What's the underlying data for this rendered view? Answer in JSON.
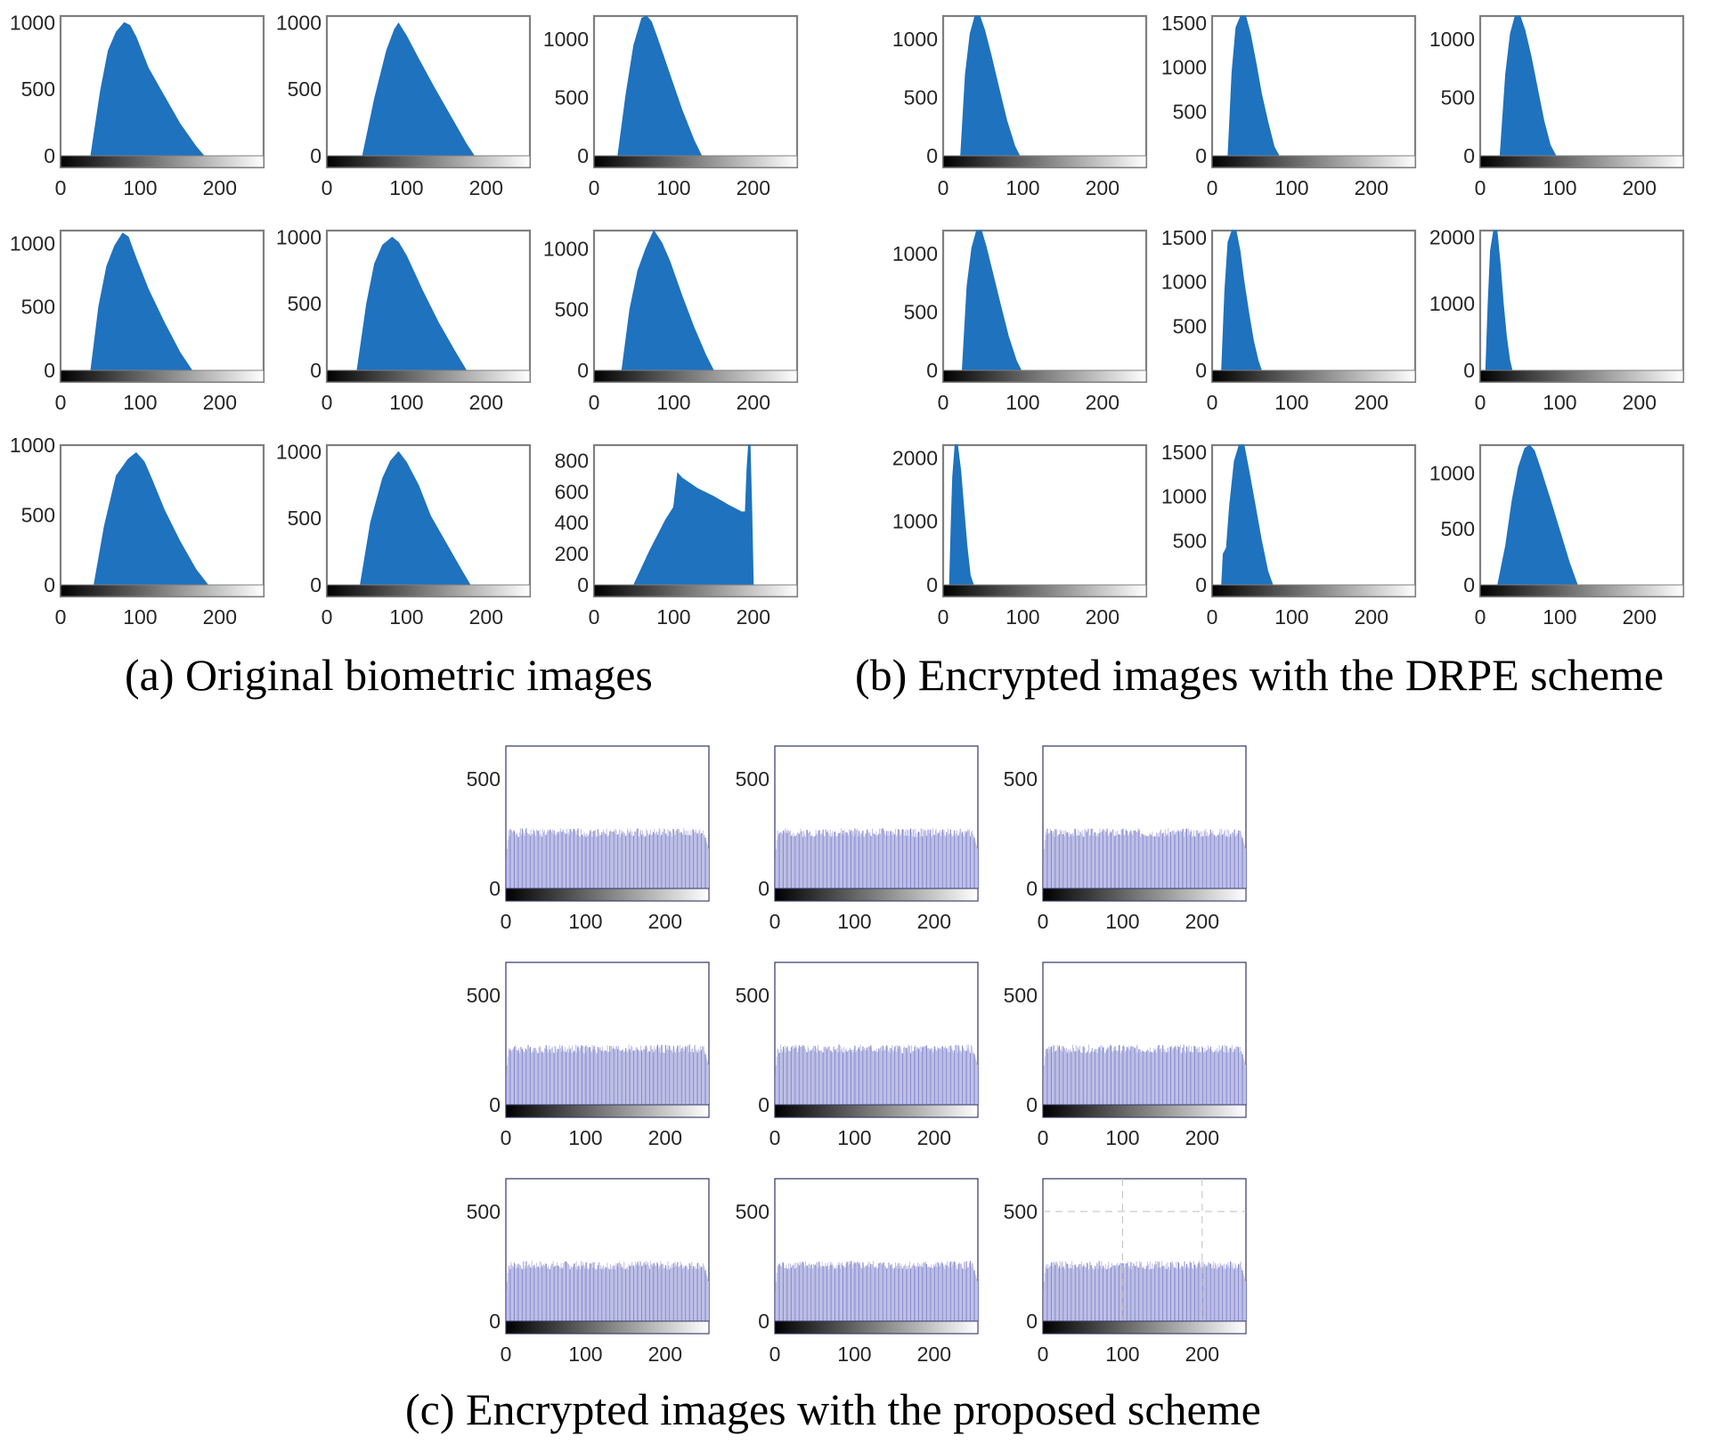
{
  "figure": {
    "captions": {
      "a": "(a) Original biometric images",
      "b": "(b) Encrypted images with the DRPE scheme",
      "c": "(c) Encrypted images with the proposed scheme"
    }
  },
  "colors": {
    "blue_fill": "#1f72be",
    "lavender_fill": "#b7b9e3",
    "lavender_bar": "#7f84c9",
    "axis_grey": "#7f7f7f",
    "axis_navy": "#333366",
    "text": "#262626"
  },
  "chart_data": [
    {
      "group": "a",
      "type": "area",
      "xlim": [
        0,
        255
      ],
      "ylim": [
        0,
        1050
      ],
      "xticks": [
        0,
        100,
        200
      ],
      "yticks": [
        0,
        500,
        1000
      ],
      "x": [
        38,
        50,
        60,
        70,
        80,
        87,
        95,
        110,
        130,
        150,
        170,
        180
      ],
      "y": [
        0,
        480,
        790,
        930,
        1000,
        980,
        890,
        660,
        450,
        240,
        70,
        0
      ]
    },
    {
      "group": "a",
      "type": "area",
      "xlim": [
        0,
        255
      ],
      "ylim": [
        0,
        1050
      ],
      "xticks": [
        0,
        100,
        200
      ],
      "yticks": [
        0,
        500,
        1000
      ],
      "x": [
        45,
        60,
        75,
        85,
        90,
        100,
        115,
        135,
        155,
        175,
        185
      ],
      "y": [
        0,
        430,
        790,
        950,
        995,
        900,
        730,
        510,
        300,
        90,
        0
      ]
    },
    {
      "group": "a",
      "type": "area",
      "xlim": [
        0,
        255
      ],
      "ylim": [
        0,
        1200
      ],
      "xticks": [
        0,
        100,
        200
      ],
      "yticks": [
        0,
        500,
        1000
      ],
      "x": [
        30,
        40,
        50,
        60,
        66,
        72,
        80,
        95,
        110,
        125,
        135
      ],
      "y": [
        0,
        520,
        950,
        1180,
        1200,
        1150,
        1000,
        700,
        400,
        140,
        0
      ]
    },
    {
      "group": "a",
      "type": "area",
      "xlim": [
        0,
        255
      ],
      "ylim": [
        0,
        1100
      ],
      "xticks": [
        0,
        100,
        200
      ],
      "yticks": [
        0,
        500,
        1000
      ],
      "x": [
        38,
        48,
        58,
        68,
        78,
        85,
        95,
        110,
        130,
        150,
        165
      ],
      "y": [
        0,
        500,
        820,
        980,
        1080,
        1050,
        880,
        640,
        380,
        140,
        0
      ]
    },
    {
      "group": "a",
      "type": "area",
      "xlim": [
        0,
        255
      ],
      "ylim": [
        0,
        1050
      ],
      "xticks": [
        0,
        100,
        200
      ],
      "yticks": [
        0,
        500,
        1000
      ],
      "x": [
        38,
        50,
        60,
        70,
        82,
        90,
        100,
        120,
        140,
        160,
        175
      ],
      "y": [
        0,
        500,
        800,
        940,
        1000,
        960,
        860,
        600,
        360,
        150,
        0
      ]
    },
    {
      "group": "a",
      "type": "area",
      "xlim": [
        0,
        255
      ],
      "ylim": [
        0,
        1150
      ],
      "xticks": [
        0,
        100,
        200
      ],
      "yticks": [
        0,
        500,
        1000
      ],
      "x": [
        35,
        45,
        55,
        65,
        75,
        85,
        95,
        110,
        125,
        140,
        150
      ],
      "y": [
        0,
        500,
        820,
        1000,
        1150,
        1050,
        900,
        620,
        360,
        130,
        0
      ]
    },
    {
      "group": "a",
      "type": "area",
      "xlim": [
        0,
        255
      ],
      "ylim": [
        0,
        1000
      ],
      "xticks": [
        0,
        100,
        200
      ],
      "yticks": [
        0,
        500,
        1000
      ],
      "x": [
        42,
        55,
        70,
        85,
        95,
        105,
        115,
        130,
        150,
        170,
        185
      ],
      "y": [
        0,
        420,
        780,
        900,
        945,
        880,
        750,
        540,
        310,
        110,
        0
      ]
    },
    {
      "group": "a",
      "type": "area",
      "xlim": [
        0,
        255
      ],
      "ylim": [
        0,
        1050
      ],
      "xticks": [
        0,
        100,
        200
      ],
      "yticks": [
        0,
        500,
        1000
      ],
      "x": [
        42,
        55,
        70,
        80,
        90,
        100,
        115,
        130,
        150,
        170,
        180
      ],
      "y": [
        0,
        470,
        800,
        930,
        1000,
        920,
        750,
        520,
        310,
        100,
        0
      ]
    },
    {
      "group": "a",
      "type": "area",
      "xlim": [
        0,
        255
      ],
      "ylim": [
        0,
        900
      ],
      "xticks": [
        0,
        100,
        200
      ],
      "yticks": [
        0,
        200,
        400,
        600,
        800
      ],
      "x": [
        50,
        70,
        90,
        100,
        105,
        110,
        130,
        150,
        170,
        185,
        190,
        192,
        194,
        196,
        198,
        200
      ],
      "y": [
        0,
        220,
        420,
        500,
        720,
        690,
        620,
        570,
        510,
        470,
        470,
        740,
        930,
        930,
        500,
        0
      ]
    },
    {
      "group": "b",
      "type": "area",
      "xlim": [
        0,
        255
      ],
      "ylim": [
        0,
        1200
      ],
      "xticks": [
        0,
        100,
        200
      ],
      "yticks": [
        0,
        500,
        1000
      ],
      "x": [
        22,
        28,
        34,
        40,
        46,
        52,
        60,
        70,
        80,
        90,
        96
      ],
      "y": [
        0,
        700,
        1050,
        1200,
        1200,
        1080,
        870,
        580,
        300,
        80,
        0
      ]
    },
    {
      "group": "b",
      "type": "area",
      "xlim": [
        0,
        255
      ],
      "ylim": [
        0,
        1580
      ],
      "xticks": [
        0,
        100,
        200
      ],
      "yticks": [
        0,
        500,
        1000,
        1500
      ],
      "x": [
        20,
        25,
        30,
        36,
        42,
        48,
        55,
        62,
        70,
        78,
        84
      ],
      "y": [
        0,
        950,
        1450,
        1580,
        1580,
        1380,
        1050,
        700,
        380,
        100,
        0
      ]
    },
    {
      "group": "b",
      "type": "area",
      "xlim": [
        0,
        255
      ],
      "ylim": [
        0,
        1200
      ],
      "xticks": [
        0,
        100,
        200
      ],
      "yticks": [
        0,
        500,
        1000
      ],
      "x": [
        25,
        32,
        38,
        44,
        50,
        56,
        64,
        72,
        80,
        88,
        95
      ],
      "y": [
        0,
        700,
        1050,
        1200,
        1200,
        1080,
        850,
        570,
        300,
        90,
        0
      ]
    },
    {
      "group": "b",
      "type": "area",
      "xlim": [
        0,
        255
      ],
      "ylim": [
        0,
        1200
      ],
      "xticks": [
        0,
        100,
        200
      ],
      "yticks": [
        0,
        500,
        1000
      ],
      "x": [
        24,
        30,
        36,
        42,
        48,
        54,
        62,
        72,
        82,
        92,
        98
      ],
      "y": [
        0,
        720,
        1050,
        1200,
        1200,
        1060,
        840,
        560,
        290,
        80,
        0
      ]
    },
    {
      "group": "b",
      "type": "area",
      "xlim": [
        0,
        255
      ],
      "ylim": [
        0,
        1580
      ],
      "xticks": [
        0,
        100,
        200
      ],
      "yticks": [
        0,
        500,
        1000,
        1500
      ],
      "x": [
        12,
        16,
        20,
        25,
        30,
        35,
        40,
        46,
        52,
        58,
        62
      ],
      "y": [
        0,
        900,
        1450,
        1580,
        1580,
        1350,
        1000,
        650,
        330,
        100,
        0
      ]
    },
    {
      "group": "b",
      "type": "area",
      "xlim": [
        0,
        255
      ],
      "ylim": [
        0,
        2100
      ],
      "xticks": [
        0,
        100,
        200
      ],
      "yticks": [
        0,
        1000,
        2000
      ],
      "x": [
        7,
        10,
        13,
        17,
        21,
        25,
        29,
        33,
        37,
        40
      ],
      "y": [
        0,
        1000,
        1800,
        2100,
        2100,
        1600,
        1000,
        500,
        150,
        0
      ]
    },
    {
      "group": "b",
      "type": "area",
      "xlim": [
        0,
        255
      ],
      "ylim": [
        0,
        2200
      ],
      "xticks": [
        0,
        100,
        200
      ],
      "yticks": [
        0,
        1000,
        2000
      ],
      "x": [
        8,
        10,
        12,
        15,
        18,
        22,
        26,
        30,
        34,
        38
      ],
      "y": [
        0,
        900,
        1700,
        2200,
        2200,
        1800,
        1200,
        600,
        150,
        0
      ]
    },
    {
      "group": "b",
      "type": "area",
      "xlim": [
        0,
        255
      ],
      "ylim": [
        0,
        1580
      ],
      "xticks": [
        0,
        100,
        200
      ],
      "yticks": [
        0,
        500,
        1000,
        1500
      ],
      "x": [
        12,
        14,
        18,
        22,
        28,
        34,
        40,
        46,
        54,
        62,
        70,
        76
      ],
      "y": [
        0,
        350,
        420,
        900,
        1400,
        1580,
        1580,
        1300,
        900,
        500,
        150,
        0
      ]
    },
    {
      "group": "b",
      "type": "area",
      "xlim": [
        0,
        255
      ],
      "ylim": [
        0,
        1250
      ],
      "xticks": [
        0,
        100,
        200
      ],
      "yticks": [
        0,
        500,
        1000
      ],
      "x": [
        22,
        32,
        40,
        48,
        56,
        62,
        68,
        76,
        88,
        100,
        112,
        122
      ],
      "y": [
        0,
        350,
        750,
        1050,
        1220,
        1250,
        1200,
        1030,
        760,
        480,
        200,
        0
      ]
    },
    {
      "group": "c",
      "type": "bar",
      "xlim": [
        0,
        255
      ],
      "ylim": [
        0,
        650
      ],
      "xticks": [
        0,
        100,
        200
      ],
      "yticks": [
        0,
        500
      ],
      "seed": 1,
      "dashed_grid": false
    },
    {
      "group": "c",
      "type": "bar",
      "xlim": [
        0,
        255
      ],
      "ylim": [
        0,
        650
      ],
      "xticks": [
        0,
        100,
        200
      ],
      "yticks": [
        0,
        500
      ],
      "seed": 2,
      "dashed_grid": false
    },
    {
      "group": "c",
      "type": "bar",
      "xlim": [
        0,
        255
      ],
      "ylim": [
        0,
        650
      ],
      "xticks": [
        0,
        100,
        200
      ],
      "yticks": [
        0,
        500
      ],
      "seed": 3,
      "dashed_grid": false
    },
    {
      "group": "c",
      "type": "bar",
      "xlim": [
        0,
        255
      ],
      "ylim": [
        0,
        650
      ],
      "xticks": [
        0,
        100,
        200
      ],
      "yticks": [
        0,
        500
      ],
      "seed": 4,
      "dashed_grid": false
    },
    {
      "group": "c",
      "type": "bar",
      "xlim": [
        0,
        255
      ],
      "ylim": [
        0,
        650
      ],
      "xticks": [
        0,
        100,
        200
      ],
      "yticks": [
        0,
        500
      ],
      "seed": 5,
      "dashed_grid": false
    },
    {
      "group": "c",
      "type": "bar",
      "xlim": [
        0,
        255
      ],
      "ylim": [
        0,
        650
      ],
      "xticks": [
        0,
        100,
        200
      ],
      "yticks": [
        0,
        500
      ],
      "seed": 6,
      "dashed_grid": false
    },
    {
      "group": "c",
      "type": "bar",
      "xlim": [
        0,
        255
      ],
      "ylim": [
        0,
        650
      ],
      "xticks": [
        0,
        100,
        200
      ],
      "yticks": [
        0,
        500
      ],
      "seed": 7,
      "dashed_grid": false
    },
    {
      "group": "c",
      "type": "bar",
      "xlim": [
        0,
        255
      ],
      "ylim": [
        0,
        650
      ],
      "xticks": [
        0,
        100,
        200
      ],
      "yticks": [
        0,
        500
      ],
      "seed": 8,
      "dashed_grid": false
    },
    {
      "group": "c",
      "type": "bar",
      "xlim": [
        0,
        255
      ],
      "ylim": [
        0,
        650
      ],
      "xticks": [
        0,
        100,
        200
      ],
      "yticks": [
        0,
        500
      ],
      "seed": 9,
      "dashed_grid": true
    }
  ]
}
